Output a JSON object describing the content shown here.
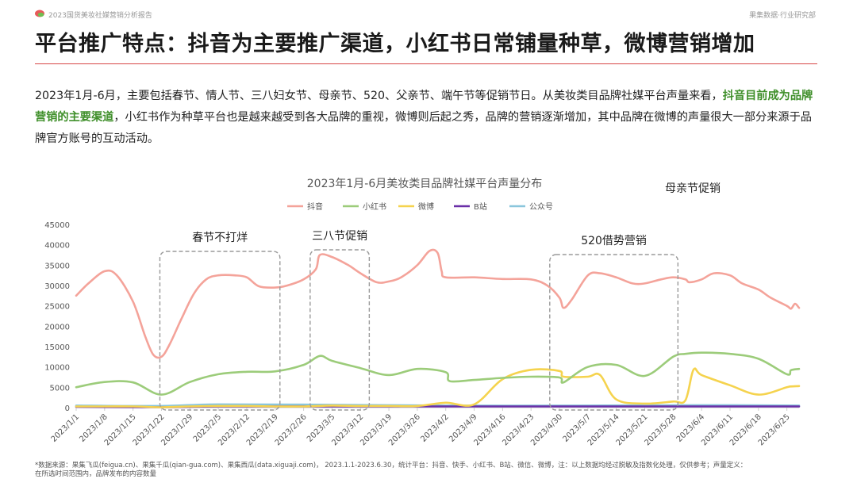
{
  "header": {
    "report_title": "2023国货美妆社媒营销分析报告",
    "department": "果集数据·行业研究部",
    "logo_icon": "leaf-logo-icon"
  },
  "page_title": "平台推广特点：抖音为主要推广渠道，小红书日常铺量种草，微博营销增加",
  "intro": {
    "part1": "2023年1月-6月，主要包括春节、情人节、三八妇女节、母亲节、520、父亲节、端午节等促销节日。从美妆类目品牌社媒平台声量来看，",
    "highlight": "抖音目前成为品牌营销的主要渠道",
    "part2": "，小红书作为种草平台也是越来越受到各大品牌的重视，微博则后起之秀，品牌的营销逐渐增加，其中品牌在微博的声量很大一部分来源于品牌官方账号的互动活动。"
  },
  "chart_data": {
    "type": "line",
    "title": "2023年1月-6月美妆类目品牌社媒平台声量分布",
    "xlabel": "",
    "ylabel": "",
    "legend_position": "top",
    "grid": false,
    "ylim": [
      0,
      45000
    ],
    "yticks": [
      0,
      5000,
      10000,
      15000,
      20000,
      25000,
      30000,
      35000,
      40000,
      45000
    ],
    "xlim": [
      "2023/1/1",
      "2023/6/28"
    ],
    "xticks": [
      "2023/1/1",
      "2023/1/8",
      "2023/1/15",
      "2023/1/22",
      "2023/1/29",
      "2023/2/5",
      "2023/2/12",
      "2023/2/19",
      "2023/2/26",
      "2023/3/5",
      "2023/3/12",
      "2023/3/19",
      "2023/3/26",
      "2023/4/2",
      "2023/4/9",
      "2023/4/16",
      "2023/4/23",
      "2023/4/30",
      "2023/5/7",
      "2023/5/14",
      "2023/5/21",
      "2023/5/28",
      "2023/6/4",
      "2023/6/11",
      "2023/6/18",
      "2023/6/25"
    ],
    "series": [
      {
        "name": "抖音",
        "color": "#f4a39a",
        "points": [
          [
            "2023/1/1",
            27500
          ],
          [
            "2023/1/4",
            30500
          ],
          [
            "2023/1/8",
            33500
          ],
          [
            "2023/1/11",
            32500
          ],
          [
            "2023/1/15",
            26000
          ],
          [
            "2023/1/18",
            17500
          ],
          [
            "2023/1/20",
            13000
          ],
          [
            "2023/1/22",
            12500
          ],
          [
            "2023/1/24",
            15500
          ],
          [
            "2023/1/27",
            22000
          ],
          [
            "2023/1/30",
            28000
          ],
          [
            "2023/2/2",
            31500
          ],
          [
            "2023/2/5",
            32500
          ],
          [
            "2023/2/9",
            32500
          ],
          [
            "2023/2/12",
            32000
          ],
          [
            "2023/2/15",
            29800
          ],
          [
            "2023/2/19",
            29500
          ],
          [
            "2023/2/22",
            30000
          ],
          [
            "2023/2/26",
            31500
          ],
          [
            "2023/3/1",
            34000
          ],
          [
            "2023/3/2",
            37500
          ],
          [
            "2023/3/5",
            37000
          ],
          [
            "2023/3/9",
            35000
          ],
          [
            "2023/3/12",
            33000
          ],
          [
            "2023/3/16",
            30800
          ],
          [
            "2023/3/19",
            31000
          ],
          [
            "2023/3/22",
            32000
          ],
          [
            "2023/3/26",
            35000
          ],
          [
            "2023/3/29",
            38500
          ],
          [
            "2023/3/31",
            38000
          ],
          [
            "2023/4/1",
            33500
          ],
          [
            "2023/4/2",
            32000
          ],
          [
            "2023/4/9",
            32000
          ],
          [
            "2023/4/16",
            31600
          ],
          [
            "2023/4/23",
            31500
          ],
          [
            "2023/4/27",
            30000
          ],
          [
            "2023/4/30",
            27000
          ],
          [
            "2023/5/1",
            24500
          ],
          [
            "2023/5/3",
            26500
          ],
          [
            "2023/5/7",
            32500
          ],
          [
            "2023/5/10",
            33000
          ],
          [
            "2023/5/14",
            32000
          ],
          [
            "2023/5/18",
            30500
          ],
          [
            "2023/5/21",
            30500
          ],
          [
            "2023/5/25",
            31500
          ],
          [
            "2023/5/28",
            32000
          ],
          [
            "2023/5/31",
            31500
          ],
          [
            "2023/6/1",
            30800
          ],
          [
            "2023/6/4",
            31500
          ],
          [
            "2023/6/7",
            33000
          ],
          [
            "2023/6/11",
            32500
          ],
          [
            "2023/6/14",
            30500
          ],
          [
            "2023/6/18",
            29000
          ],
          [
            "2023/6/21",
            27000
          ],
          [
            "2023/6/25",
            25000
          ],
          [
            "2023/6/26",
            24300
          ],
          [
            "2023/6/27",
            25500
          ],
          [
            "2023/6/28",
            24500
          ]
        ]
      },
      {
        "name": "小红书",
        "color": "#9ccc7a",
        "points": [
          [
            "2023/1/1",
            5000
          ],
          [
            "2023/1/8",
            6300
          ],
          [
            "2023/1/15",
            6200
          ],
          [
            "2023/1/22",
            3200
          ],
          [
            "2023/1/29",
            6300
          ],
          [
            "2023/2/5",
            8200
          ],
          [
            "2023/2/12",
            8800
          ],
          [
            "2023/2/19",
            8900
          ],
          [
            "2023/2/26",
            10500
          ],
          [
            "2023/3/2",
            12700
          ],
          [
            "2023/3/5",
            11500
          ],
          [
            "2023/3/12",
            9700
          ],
          [
            "2023/3/19",
            8000
          ],
          [
            "2023/3/26",
            9500
          ],
          [
            "2023/4/2",
            8700
          ],
          [
            "2023/4/3",
            6500
          ],
          [
            "2023/4/9",
            6800
          ],
          [
            "2023/4/16",
            7300
          ],
          [
            "2023/4/23",
            7600
          ],
          [
            "2023/4/30",
            7400
          ],
          [
            "2023/5/1",
            6200
          ],
          [
            "2023/5/7",
            10000
          ],
          [
            "2023/5/14",
            10500
          ],
          [
            "2023/5/21",
            7800
          ],
          [
            "2023/5/28",
            12500
          ],
          [
            "2023/5/31",
            13200
          ],
          [
            "2023/6/4",
            13500
          ],
          [
            "2023/6/11",
            13200
          ],
          [
            "2023/6/18",
            12000
          ],
          [
            "2023/6/25",
            8200
          ],
          [
            "2023/6/26",
            9200
          ],
          [
            "2023/6/28",
            9500
          ]
        ]
      },
      {
        "name": "微博",
        "color": "#f5d34e",
        "points": [
          [
            "2023/1/1",
            300
          ],
          [
            "2023/1/8",
            300
          ],
          [
            "2023/1/15",
            300
          ],
          [
            "2023/1/22",
            100
          ],
          [
            "2023/1/29",
            300
          ],
          [
            "2023/2/5",
            400
          ],
          [
            "2023/2/12",
            400
          ],
          [
            "2023/2/19",
            300
          ],
          [
            "2023/2/26",
            300
          ],
          [
            "2023/3/5",
            500
          ],
          [
            "2023/3/12",
            400
          ],
          [
            "2023/3/19",
            400
          ],
          [
            "2023/3/26",
            400
          ],
          [
            "2023/4/2",
            1200
          ],
          [
            "2023/4/9",
            800
          ],
          [
            "2023/4/16",
            7000
          ],
          [
            "2023/4/23",
            9300
          ],
          [
            "2023/4/30",
            9000
          ],
          [
            "2023/5/1",
            7600
          ],
          [
            "2023/5/7",
            7600
          ],
          [
            "2023/5/10",
            8000
          ],
          [
            "2023/5/14",
            2000
          ],
          [
            "2023/5/21",
            1000
          ],
          [
            "2023/5/28",
            1500
          ],
          [
            "2023/5/31",
            1800
          ],
          [
            "2023/6/2",
            9300
          ],
          [
            "2023/6/4",
            8000
          ],
          [
            "2023/6/11",
            5500
          ],
          [
            "2023/6/18",
            3200
          ],
          [
            "2023/6/25",
            5000
          ],
          [
            "2023/6/26",
            5200
          ],
          [
            "2023/6/28",
            5300
          ]
        ]
      },
      {
        "name": "B站",
        "color": "#6a2fa8",
        "points": [
          [
            "2023/1/1",
            200
          ],
          [
            "2023/1/22",
            100
          ],
          [
            "2023/2/5",
            300
          ],
          [
            "2023/3/5",
            300
          ],
          [
            "2023/4/2",
            300
          ],
          [
            "2023/5/7",
            300
          ],
          [
            "2023/6/4",
            300
          ],
          [
            "2023/6/28",
            300
          ]
        ]
      },
      {
        "name": "公众号",
        "color": "#8ac6dc",
        "points": [
          [
            "2023/1/1",
            500
          ],
          [
            "2023/1/22",
            400
          ],
          [
            "2023/2/5",
            800
          ],
          [
            "2023/3/5",
            700
          ],
          [
            "2023/4/2",
            500
          ],
          [
            "2023/5/7",
            500
          ],
          [
            "2023/6/4",
            600
          ],
          [
            "2023/6/28",
            500
          ]
        ]
      }
    ],
    "annotations": [
      {
        "label": "春节不打烊",
        "from": "2023/1/22",
        "to": "2023/2/19",
        "style": "dashed-box"
      },
      {
        "label": "三八节促销",
        "from": "2023/2/28",
        "to": "2023/3/13",
        "style": "dashed-box"
      },
      {
        "label": "520借势营销",
        "from": "2023/4/28",
        "to": "2023/5/28",
        "style": "dashed-box"
      },
      {
        "label": "母亲节促销",
        "style": "text"
      }
    ]
  },
  "footnote": {
    "line1": "*数据来源：果集飞瓜(feigua.cn)、果集千瓜(qian-gua.com)、果集西瓜(data.xiguaji.com)， 2023.1.1-2023.6.30，统计平台：抖音、快手、小红书、B站、微信、微博，注：以上数据均经过脱敏及指数化处理，仅供参考；声量定义：",
    "line2": "在所选时间范围内，品牌发布的内容数量"
  }
}
